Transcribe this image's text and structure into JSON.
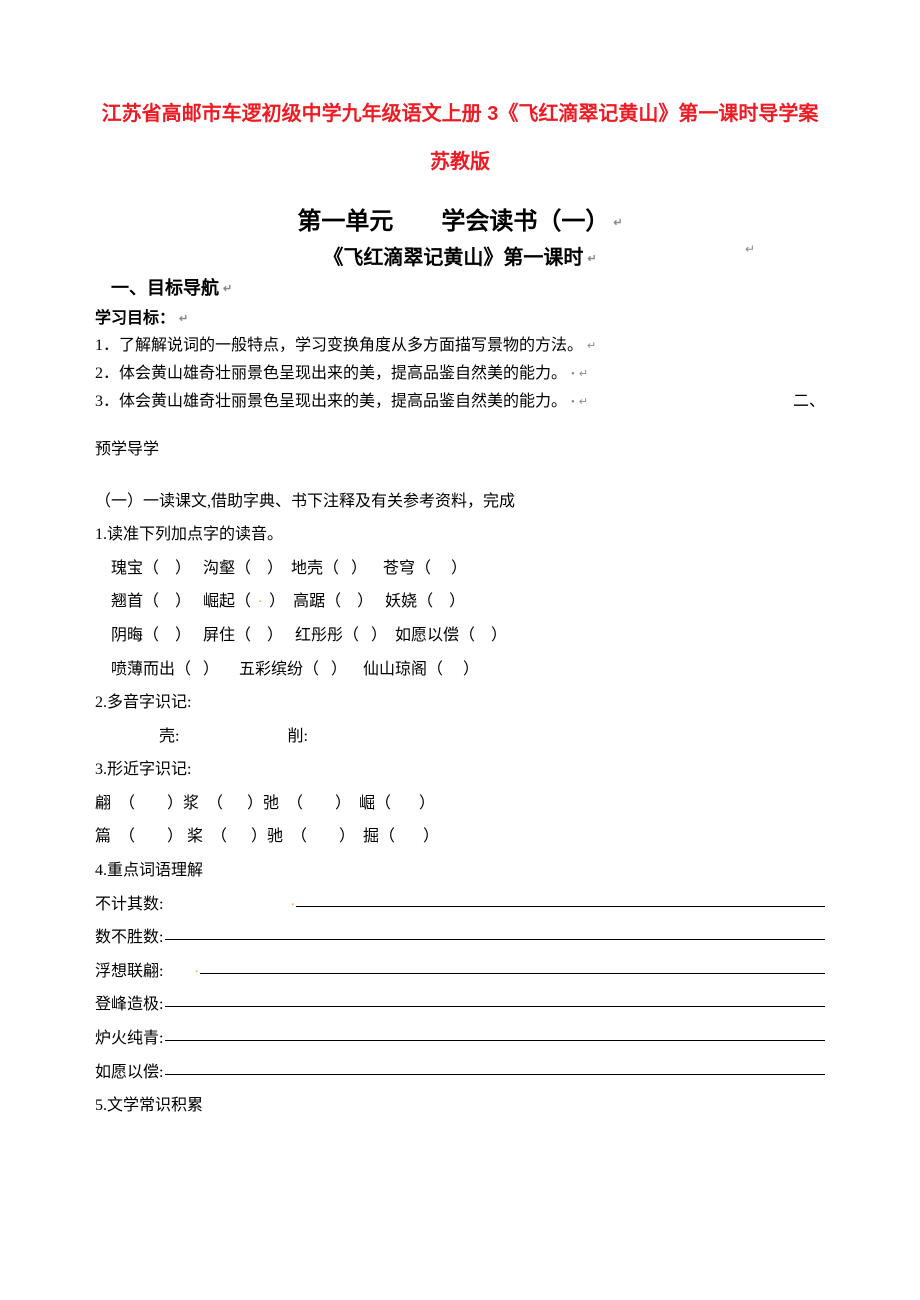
{
  "title_main": "江苏省高邮市车逻初级中学九年级语文上册 3《飞红滴翠记黄山》第一课时导学案 苏教版",
  "unit_title": "第一单元　　学会读书（一）",
  "lesson_title": "《飞红滴翠记黄山》第一课时",
  "section1": {
    "heading": "一、目标导航",
    "label": "学习目标：",
    "items": [
      "1．了解解说词的一般特点，学习变换角度从多方面描写景物的方法。",
      "2．体会黄山雄奇壮丽景色呈现出来的美，提高品鉴自然美的能力。",
      "3．体会黄山雄奇壮丽景色呈现出来的美，提高品鉴自然美的能力。"
    ]
  },
  "er_label": "二、",
  "section2": {
    "heading": "预学导学",
    "sub1_heading": "（一）一读课文,借助字典、书下注释及有关参考资料，完成",
    "q1_heading": "1.读准下列加点字的读音。",
    "q1_rows": [
      "瑰宝（    ）   沟壑（    ）  地壳（   ）    苍穹（     ）",
      "翘首（    ）   崛起（     ）  高踞（    ）   妖娆（    ）",
      "阴晦（    ）   屏住（    ）   红彤彤（   ）  如愿以偿（    ）",
      "喷薄而出（   ）     五彩缤纷（   ）    仙山琼阁（     ）"
    ],
    "q1_orange_dot_row": 1,
    "q2_heading": "2.多音字识记:",
    "q2_row": "壳:                           削:",
    "q3_heading": "3.形近字识记:",
    "q3_rows": [
      "翩  （        ）浆  （      ）弛  （        ）  崛（       ）",
      "篇  （        ） 桨  （      ）驰  （        ）  掘（       ）"
    ],
    "q4_heading": "4.重点词语理解",
    "q4_terms": [
      "不计其数:",
      "数不胜数:",
      "浮想联翩:",
      "登峰造极:",
      "炉火纯青:",
      "如愿以偿:"
    ],
    "q4_orange_dot_term1": 0,
    "q4_orange_dot_term2": 2,
    "q5_heading": "5.文学常识积累"
  },
  "colors": {
    "title_red": "#ed1c24",
    "body_black": "#000000",
    "return_gray": "#888888",
    "orange": "#ff9933",
    "background": "#ffffff"
  },
  "fonts": {
    "heiti": "SimHei",
    "songti": "SimSun"
  }
}
